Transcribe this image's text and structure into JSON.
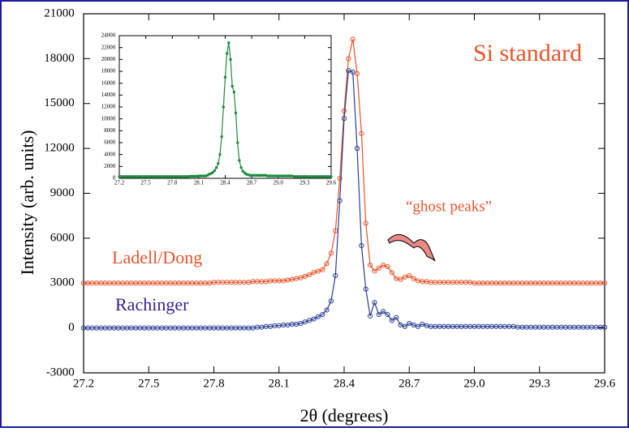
{
  "chart_data": [
    {
      "type": "line",
      "title": "Si standard",
      "annotation": "“ghost peaks”",
      "x_label": "2θ (degrees)",
      "y_label": "Intensity (arb. units)",
      "x": [
        27.2,
        27.22,
        27.24,
        27.26,
        27.28,
        27.3,
        27.32,
        27.34,
        27.36,
        27.38,
        27.4,
        27.42,
        27.44,
        27.46,
        27.48,
        27.5,
        27.52,
        27.54,
        27.56,
        27.58,
        27.6,
        27.62,
        27.64,
        27.66,
        27.68,
        27.7,
        27.72,
        27.74,
        27.76,
        27.78,
        27.8,
        27.82,
        27.84,
        27.86,
        27.88,
        27.9,
        27.92,
        27.94,
        27.96,
        27.98,
        28.0,
        28.02,
        28.04,
        28.06,
        28.08,
        28.1,
        28.12,
        28.14,
        28.16,
        28.18,
        28.2,
        28.22,
        28.24,
        28.26,
        28.28,
        28.3,
        28.32,
        28.34,
        28.36,
        28.38,
        28.4,
        28.42,
        28.44,
        28.46,
        28.48,
        28.5,
        28.52,
        28.54,
        28.56,
        28.58,
        28.6,
        28.62,
        28.64,
        28.66,
        28.68,
        28.7,
        28.72,
        28.74,
        28.76,
        28.78,
        28.8,
        28.82,
        28.84,
        28.86,
        28.88,
        28.9,
        28.92,
        28.94,
        28.96,
        28.98,
        29.0,
        29.02,
        29.04,
        29.06,
        29.08,
        29.1,
        29.12,
        29.14,
        29.16,
        29.18,
        29.2,
        29.22,
        29.24,
        29.26,
        29.28,
        29.3,
        29.32,
        29.34,
        29.36,
        29.38,
        29.4,
        29.42,
        29.44,
        29.46,
        29.48,
        29.5,
        29.52,
        29.54,
        29.56,
        29.58,
        29.6
      ],
      "series": [
        {
          "name": "Ladell/Dong",
          "color": "#e8542a",
          "values": [
            3000,
            3000,
            3000,
            3000,
            3000,
            3000,
            3000,
            3000,
            3000,
            3000,
            3000,
            3000,
            3000,
            3000,
            3000,
            3000,
            3000,
            3000,
            3000,
            3000,
            3000,
            3000,
            3000,
            3000,
            3000,
            3000,
            3000,
            3000,
            3000,
            3000,
            3050,
            3050,
            3050,
            3050,
            3050,
            3050,
            3050,
            3050,
            3050,
            3100,
            3100,
            3100,
            3100,
            3150,
            3150,
            3150,
            3150,
            3200,
            3250,
            3300,
            3350,
            3450,
            3550,
            3700,
            3800,
            3900,
            4300,
            5000,
            6500,
            10000,
            14500,
            18000,
            19300,
            17000,
            13000,
            7000,
            4200,
            3800,
            4000,
            4200,
            4100,
            3700,
            3300,
            3250,
            3400,
            3500,
            3300,
            3150,
            3100,
            3100,
            3050,
            3050,
            3050,
            3050,
            3050,
            3050,
            3050,
            3050,
            3050,
            3050,
            3000,
            3000,
            3000,
            3000,
            3000,
            3000,
            3000,
            3000,
            3000,
            3000,
            3000,
            3000,
            3000,
            3000,
            3000,
            3000,
            3000,
            3000,
            3000,
            3000,
            3000,
            3000,
            3000,
            3000,
            3000,
            3000,
            3000,
            3000,
            3000,
            3000,
            3000
          ]
        },
        {
          "name": "Rachinger",
          "color": "#2b3f96",
          "values": [
            0,
            0,
            0,
            0,
            0,
            0,
            0,
            0,
            0,
            0,
            0,
            0,
            0,
            0,
            0,
            0,
            0,
            0,
            0,
            0,
            0,
            0,
            0,
            0,
            0,
            0,
            0,
            0,
            0,
            0,
            0,
            0,
            0,
            0,
            0,
            0,
            0,
            0,
            0,
            0,
            50,
            50,
            100,
            100,
            150,
            150,
            200,
            200,
            250,
            250,
            300,
            400,
            500,
            600,
            750,
            900,
            1200,
            1800,
            3500,
            8500,
            14000,
            17200,
            17100,
            12000,
            5500,
            2600,
            800,
            1700,
            900,
            1100,
            900,
            500,
            700,
            200,
            100,
            300,
            200,
            100,
            250,
            150,
            100,
            100,
            100,
            100,
            100,
            100,
            100,
            100,
            100,
            100,
            100,
            100,
            100,
            100,
            100,
            100,
            100,
            100,
            100,
            100,
            50,
            50,
            50,
            50,
            50,
            50,
            50,
            50,
            50,
            50,
            50,
            50,
            50,
            50,
            50,
            50,
            50,
            50,
            50,
            50,
            50
          ]
        }
      ],
      "xlim": [
        27.2,
        29.6
      ],
      "ylim": [
        -3000,
        21000
      ],
      "xticks": [
        27.2,
        27.5,
        27.8,
        28.1,
        28.4,
        28.7,
        {
          "value": 29,
          "label": "29.0"
        },
        29.3,
        29.6
      ],
      "yticks": [
        -3000,
        0,
        3000,
        6000,
        9000,
        12000,
        15000,
        18000,
        21000
      ]
    },
    {
      "type": "line",
      "x": [
        27.2,
        27.22,
        27.24,
        27.26,
        27.28,
        27.3,
        27.32,
        27.34,
        27.36,
        27.38,
        27.4,
        27.42,
        27.44,
        27.46,
        27.48,
        27.5,
        27.52,
        27.54,
        27.56,
        27.58,
        27.6,
        27.62,
        27.64,
        27.66,
        27.68,
        27.7,
        27.72,
        27.74,
        27.76,
        27.78,
        27.8,
        27.82,
        27.84,
        27.86,
        27.88,
        27.9,
        27.92,
        27.94,
        27.96,
        27.98,
        28.0,
        28.02,
        28.04,
        28.06,
        28.08,
        28.1,
        28.12,
        28.14,
        28.16,
        28.18,
        28.2,
        28.22,
        28.24,
        28.26,
        28.28,
        28.3,
        28.32,
        28.34,
        28.36,
        28.38,
        28.4,
        28.42,
        28.44,
        28.46,
        28.48,
        28.5,
        28.52,
        28.54,
        28.56,
        28.58,
        28.6,
        28.62,
        28.64,
        28.66,
        28.68,
        28.7,
        28.72,
        28.74,
        28.76,
        28.78,
        28.8,
        28.82,
        28.84,
        28.86,
        28.88,
        28.9,
        28.92,
        28.94,
        28.96,
        28.98,
        29.0,
        29.02,
        29.04,
        29.06,
        29.08,
        29.1,
        29.12,
        29.14,
        29.16,
        29.18,
        29.2,
        29.22,
        29.24,
        29.26,
        29.28,
        29.3,
        29.32,
        29.34,
        29.36,
        29.38,
        29.4,
        29.42,
        29.44,
        29.46,
        29.48,
        29.5,
        29.52,
        29.54,
        29.56,
        29.58,
        29.6
      ],
      "series": [
        {
          "color": "#1f8a3c",
          "values": [
            300,
            300,
            300,
            300,
            300,
            300,
            300,
            300,
            300,
            300,
            300,
            300,
            300,
            300,
            300,
            300,
            300,
            300,
            300,
            300,
            300,
            300,
            300,
            300,
            300,
            300,
            300,
            300,
            300,
            300,
            300,
            300,
            300,
            300,
            300,
            300,
            300,
            300,
            300,
            300,
            350,
            350,
            350,
            350,
            350,
            400,
            400,
            400,
            400,
            400,
            500,
            700,
            800,
            1000,
            1300,
            1800,
            2500,
            4000,
            7000,
            12000,
            17000,
            21000,
            22800,
            20000,
            15500,
            14500,
            11000,
            6000,
            3000,
            1800,
            1200,
            900,
            700,
            600,
            500,
            500,
            500,
            500,
            500,
            500,
            500,
            500,
            500,
            500,
            400,
            400,
            400,
            400,
            400,
            400,
            400,
            400,
            400,
            400,
            400,
            400,
            400,
            400,
            400,
            300,
            300,
            300,
            300,
            300,
            300,
            300,
            300,
            300,
            300,
            300,
            300,
            300,
            300,
            300,
            300,
            300,
            300,
            300,
            300,
            300,
            300
          ]
        }
      ],
      "xlim": [
        27.2,
        29.6
      ],
      "ylim": [
        0,
        24000
      ],
      "xticks": [
        27.2,
        27.5,
        27.8,
        28.1,
        28.4,
        28.7,
        {
          "value": 29,
          "label": "29.0"
        },
        29.3,
        29.6
      ],
      "yticks": [
        0,
        2000,
        4000,
        6000,
        8000,
        10000,
        12000,
        14000,
        16000,
        18000,
        20000,
        22000,
        24000
      ]
    }
  ]
}
